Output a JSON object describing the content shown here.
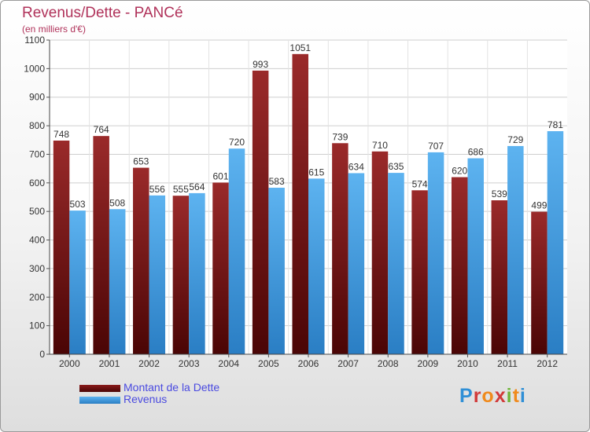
{
  "chart_data": {
    "type": "bar",
    "title": "Revenus/Dette - PANCé",
    "subtitle": "(en milliers d'€)",
    "categories": [
      "2000",
      "2001",
      "2002",
      "2003",
      "2004",
      "2005",
      "2006",
      "2007",
      "2008",
      "2009",
      "2010",
      "2011",
      "2012"
    ],
    "series": [
      {
        "name": "Montant de la Dette",
        "color": "#7a1414",
        "values": [
          748,
          764,
          653,
          555,
          601,
          993,
          1051,
          739,
          710,
          574,
          620,
          539,
          499
        ]
      },
      {
        "name": "Revenus",
        "color": "#4aa3e6",
        "values": [
          503,
          508,
          556,
          564,
          720,
          583,
          615,
          634,
          635,
          707,
          686,
          729,
          781
        ]
      }
    ],
    "ylim": [
      0,
      1100
    ],
    "yticks": [
      0,
      100,
      200,
      300,
      400,
      500,
      600,
      700,
      800,
      900,
      1000,
      1100
    ],
    "grid": true,
    "legend_position": "bottom-left"
  },
  "branding": {
    "logo_text": "Proxiti"
  }
}
